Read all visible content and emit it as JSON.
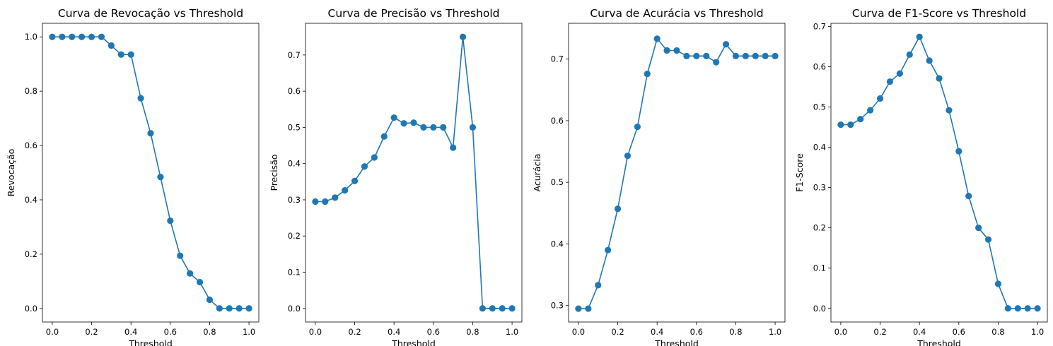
{
  "chart_data": [
    {
      "type": "line",
      "title": "Curva de Revocação vs Threshold",
      "xlabel": "Threshold",
      "ylabel": "Revocação",
      "xlim": [
        -0.05,
        1.05
      ],
      "ylim": [
        -0.05,
        1.05
      ],
      "xticks": [
        0.0,
        0.2,
        0.4,
        0.6,
        0.8,
        1.0
      ],
      "xtick_labels": [
        "0.0",
        "0.2",
        "0.4",
        "0.6",
        "0.8",
        "1.0"
      ],
      "yticks": [
        0.0,
        0.2,
        0.4,
        0.6,
        0.8,
        1.0
      ],
      "ytick_labels": [
        "0.0",
        "0.2",
        "0.4",
        "0.6",
        "0.8",
        "1.0"
      ],
      "grid": false,
      "color": "#1f77b4",
      "marker": "circle",
      "x": [
        0.0,
        0.05,
        0.1,
        0.15,
        0.2,
        0.25,
        0.3,
        0.35,
        0.4,
        0.45,
        0.5,
        0.55,
        0.6,
        0.65,
        0.7,
        0.75,
        0.8,
        0.85,
        0.9,
        0.95,
        1.0
      ],
      "values": [
        1.0,
        1.0,
        1.0,
        1.0,
        1.0,
        1.0,
        0.968,
        0.935,
        0.935,
        0.774,
        0.645,
        0.484,
        0.323,
        0.194,
        0.129,
        0.097,
        0.032,
        0.0,
        0.0,
        0.0,
        0.0
      ]
    },
    {
      "type": "line",
      "title": "Curva de Precisão vs Threshold",
      "xlabel": "Threshold",
      "ylabel": "Precisão",
      "xlim": [
        -0.05,
        1.05
      ],
      "ylim": [
        -0.0375,
        0.7875
      ],
      "xticks": [
        0.0,
        0.2,
        0.4,
        0.6,
        0.8,
        1.0
      ],
      "xtick_labels": [
        "0.0",
        "0.2",
        "0.4",
        "0.6",
        "0.8",
        "1.0"
      ],
      "yticks": [
        0.0,
        0.1,
        0.2,
        0.3,
        0.4,
        0.5,
        0.6,
        0.7
      ],
      "ytick_labels": [
        "0.0",
        "0.1",
        "0.2",
        "0.3",
        "0.4",
        "0.5",
        "0.6",
        "0.7"
      ],
      "grid": false,
      "color": "#1f77b4",
      "marker": "circle",
      "x": [
        0.0,
        0.05,
        0.1,
        0.15,
        0.2,
        0.25,
        0.3,
        0.35,
        0.4,
        0.45,
        0.5,
        0.55,
        0.6,
        0.65,
        0.7,
        0.75,
        0.8,
        0.85,
        0.9,
        0.95,
        1.0
      ],
      "values": [
        0.295,
        0.295,
        0.306,
        0.326,
        0.352,
        0.392,
        0.417,
        0.475,
        0.527,
        0.511,
        0.513,
        0.5,
        0.5,
        0.5,
        0.444,
        0.75,
        0.5,
        0.0,
        0.0,
        0.0,
        0.0
      ]
    },
    {
      "type": "line",
      "title": "Curva de Acurácia vs Threshold",
      "xlabel": "Threshold",
      "ylabel": "Acurácia",
      "xlim": [
        -0.05,
        1.05
      ],
      "ylim": [
        0.2733,
        0.7581
      ],
      "xticks": [
        0.0,
        0.2,
        0.4,
        0.6,
        0.8,
        1.0
      ],
      "xtick_labels": [
        "0.0",
        "0.2",
        "0.4",
        "0.6",
        "0.8",
        "1.0"
      ],
      "yticks": [
        0.3,
        0.4,
        0.5,
        0.6,
        0.7
      ],
      "ytick_labels": [
        "0.3",
        "0.4",
        "0.5",
        "0.6",
        "0.7"
      ],
      "grid": false,
      "color": "#1f77b4",
      "marker": "circle",
      "x": [
        0.0,
        0.05,
        0.1,
        0.15,
        0.2,
        0.25,
        0.3,
        0.35,
        0.4,
        0.45,
        0.5,
        0.55,
        0.6,
        0.65,
        0.7,
        0.75,
        0.8,
        0.85,
        0.9,
        0.95,
        1.0
      ],
      "values": [
        0.295,
        0.295,
        0.333,
        0.39,
        0.457,
        0.543,
        0.59,
        0.676,
        0.733,
        0.714,
        0.714,
        0.705,
        0.705,
        0.705,
        0.695,
        0.724,
        0.705,
        0.705,
        0.705,
        0.705,
        0.705
      ]
    },
    {
      "type": "line",
      "title": "Curva de F1-Score vs Threshold",
      "xlabel": "Threshold",
      "ylabel": "F1-Score",
      "xlim": [
        -0.05,
        1.05
      ],
      "ylim": [
        -0.0337,
        0.7077
      ],
      "xticks": [
        0.0,
        0.2,
        0.4,
        0.6,
        0.8,
        1.0
      ],
      "xtick_labels": [
        "0.0",
        "0.2",
        "0.4",
        "0.6",
        "0.8",
        "1.0"
      ],
      "yticks": [
        0.0,
        0.1,
        0.2,
        0.3,
        0.4,
        0.5,
        0.6,
        0.7
      ],
      "ytick_labels": [
        "0.0",
        "0.1",
        "0.2",
        "0.3",
        "0.4",
        "0.5",
        "0.6",
        "0.7"
      ],
      "grid": false,
      "color": "#1f77b4",
      "marker": "circle",
      "x": [
        0.0,
        0.05,
        0.1,
        0.15,
        0.2,
        0.25,
        0.3,
        0.35,
        0.4,
        0.45,
        0.5,
        0.55,
        0.6,
        0.65,
        0.7,
        0.75,
        0.8,
        0.85,
        0.9,
        0.95,
        1.0
      ],
      "values": [
        0.456,
        0.456,
        0.47,
        0.492,
        0.521,
        0.563,
        0.583,
        0.63,
        0.674,
        0.615,
        0.571,
        0.492,
        0.39,
        0.279,
        0.2,
        0.171,
        0.061,
        0.0,
        0.0,
        0.0,
        0.0
      ]
    }
  ]
}
